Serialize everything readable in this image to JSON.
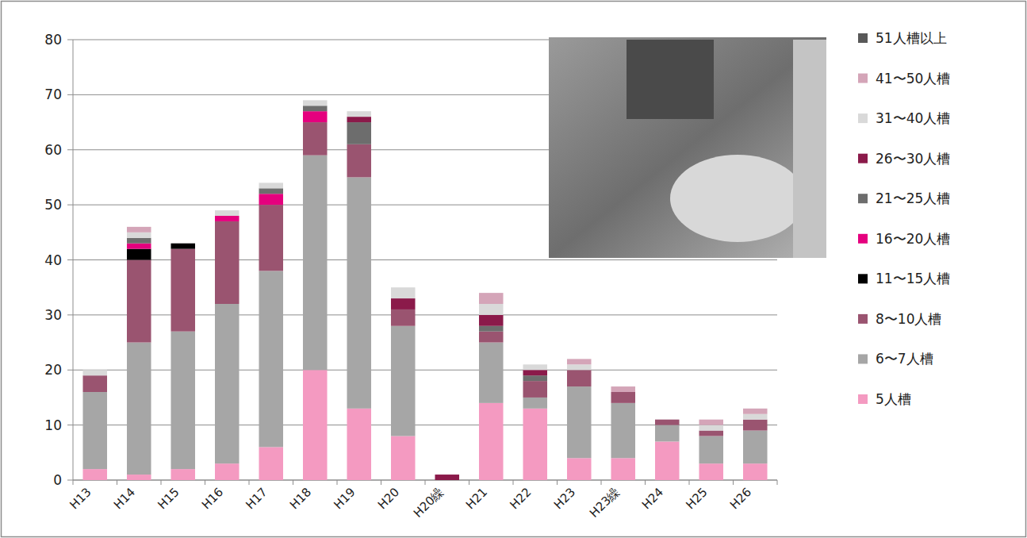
{
  "chart_data": {
    "type": "bar",
    "stacked": true,
    "grid": true,
    "legend": "right",
    "categories": [
      "H13",
      "H14",
      "H15",
      "H16",
      "H17",
      "H18",
      "H19",
      "H20",
      "H20繰",
      "H21",
      "H22",
      "H23",
      "H23繰",
      "H24",
      "H25",
      "H26"
    ],
    "ylim": [
      0,
      80
    ],
    "yticks": [
      0,
      10,
      20,
      30,
      40,
      50,
      60,
      70,
      80
    ],
    "series": [
      {
        "name": "5人槽",
        "color": "#f49ac1",
        "values": [
          2,
          1,
          2,
          3,
          6,
          20,
          13,
          8,
          0,
          14,
          13,
          4,
          4,
          7,
          3,
          3
        ]
      },
      {
        "name": "6〜7人槽",
        "color": "#a6a6a6",
        "values": [
          14,
          24,
          25,
          29,
          32,
          39,
          42,
          20,
          0,
          11,
          2,
          13,
          10,
          3,
          5,
          6
        ]
      },
      {
        "name": "8〜10人槽",
        "color": "#9a5470",
        "values": [
          3,
          15,
          15,
          15,
          12,
          6,
          6,
          3,
          0,
          2,
          3,
          3,
          2,
          1,
          1,
          2
        ]
      },
      {
        "name": "11〜15人槽",
        "color": "#000000",
        "values": [
          0,
          2,
          1,
          0,
          0,
          0,
          0,
          0,
          0,
          0,
          0,
          0,
          0,
          0,
          0,
          0
        ]
      },
      {
        "name": "16〜20人槽",
        "color": "#e5007e",
        "values": [
          0,
          1,
          0,
          1,
          2,
          2,
          0,
          0,
          0,
          0,
          0,
          0,
          0,
          0,
          0,
          0
        ]
      },
      {
        "name": "21〜25人槽",
        "color": "#6d6d6d",
        "values": [
          0,
          1,
          0,
          0,
          1,
          1,
          4,
          0,
          0,
          1,
          1,
          0,
          0,
          0,
          0,
          0
        ]
      },
      {
        "name": "26〜30人槽",
        "color": "#8b1a4a",
        "values": [
          0,
          0,
          0,
          0,
          0,
          0,
          1,
          2,
          1,
          2,
          1,
          0,
          0,
          0,
          0,
          0
        ]
      },
      {
        "name": "31〜40人槽",
        "color": "#d9d9d9",
        "values": [
          1,
          1,
          0,
          1,
          1,
          1,
          1,
          2,
          0,
          2,
          1,
          1,
          0,
          0,
          1,
          1
        ]
      },
      {
        "name": "41〜50人槽",
        "color": "#d4a5b8",
        "values": [
          0,
          1,
          0,
          0,
          0,
          0,
          0,
          0,
          0,
          2,
          0,
          1,
          1,
          0,
          1,
          1
        ]
      },
      {
        "name": "51人槽以上",
        "color": "#595959",
        "values": [
          0,
          0,
          0,
          0,
          0,
          0,
          0,
          0,
          0,
          0,
          0,
          0,
          0,
          0,
          0,
          0
        ]
      }
    ]
  }
}
